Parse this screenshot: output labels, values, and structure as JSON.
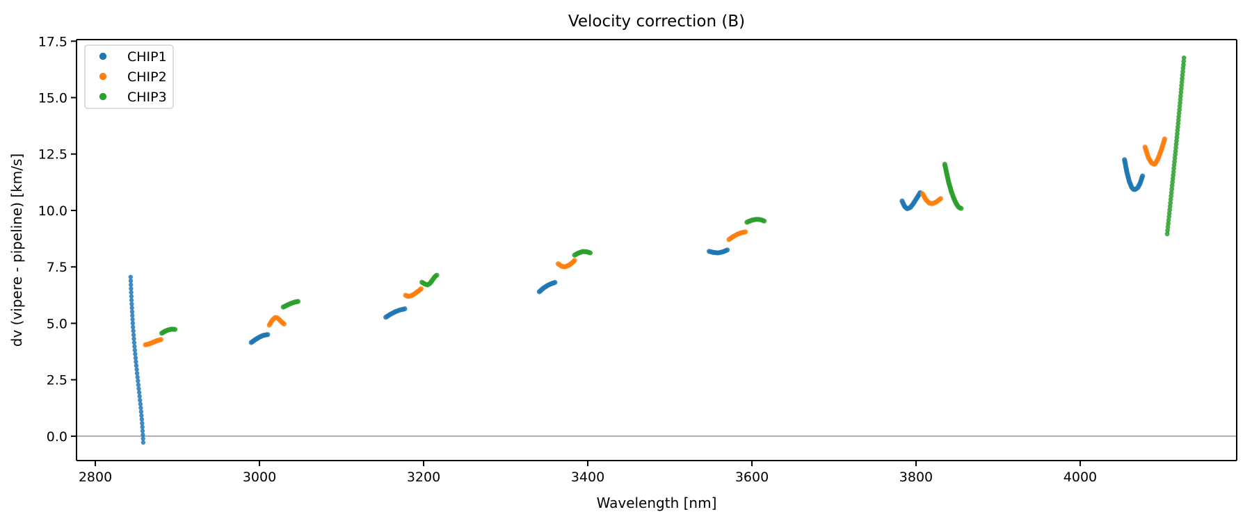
{
  "chart_data": {
    "type": "scatter",
    "title": "Velocity correction (B)",
    "xlabel": "Wavelength [nm]",
    "ylabel": "dv (vipere - pipeline) [km/s]",
    "xlim": [
      2777.1,
      4190.7
    ],
    "ylim": [
      -1.08,
      17.57
    ],
    "x_ticks": [
      2800,
      3000,
      3200,
      3400,
      3600,
      3800,
      4000
    ],
    "x_tick_labels": [
      "2800",
      "3000",
      "3200",
      "3400",
      "3600",
      "3800",
      "4000"
    ],
    "y_ticks": [
      0.0,
      2.5,
      5.0,
      7.5,
      10.0,
      12.5,
      15.0,
      17.5
    ],
    "y_tick_labels": [
      "0.0",
      "2.5",
      "5.0",
      "7.5",
      "10.0",
      "12.5",
      "15.0",
      "17.5"
    ],
    "grid": false,
    "zero_line": {
      "y": 0.0,
      "color": "#808080"
    },
    "legend": {
      "position": "upper left",
      "entries": [
        "CHIP1",
        "CHIP2",
        "CHIP3"
      ]
    },
    "series": [
      {
        "name": "CHIP1",
        "color": "#1f77b4",
        "segments": [
          {
            "dots": 44,
            "r": 3.2,
            "points": [
              [
                2843.0,
                7.05
              ],
              [
                2843.8,
                6.3
              ],
              [
                2844.8,
                5.55
              ],
              [
                2846.0,
                4.8
              ],
              [
                2847.5,
                4.1
              ],
              [
                2849.2,
                3.4
              ],
              [
                2851.2,
                2.7
              ],
              [
                2853.3,
                2.0
              ],
              [
                2855.3,
                1.3
              ],
              [
                2856.8,
                0.7
              ],
              [
                2857.8,
                0.15
              ],
              [
                2858.4,
                -0.28
              ]
            ]
          },
          {
            "points": [
              [
                2990,
                4.15
              ],
              [
                2995,
                4.28
              ],
              [
                3000,
                4.39
              ],
              [
                3005,
                4.47
              ],
              [
                3010,
                4.5
              ]
            ]
          },
          {
            "points": [
              [
                3154,
                5.27
              ],
              [
                3160,
                5.41
              ],
              [
                3166,
                5.52
              ],
              [
                3171,
                5.59
              ],
              [
                3177,
                5.64
              ]
            ]
          },
          {
            "points": [
              [
                3341,
                6.4
              ],
              [
                3346,
                6.56
              ],
              [
                3351,
                6.68
              ],
              [
                3356,
                6.76
              ],
              [
                3360,
                6.81
              ]
            ]
          },
          {
            "points": [
              [
                3548,
                8.19
              ],
              [
                3553,
                8.14
              ],
              [
                3559,
                8.12
              ],
              [
                3565,
                8.17
              ],
              [
                3570,
                8.25
              ]
            ]
          },
          {
            "points": [
              [
                3783,
                10.42
              ],
              [
                3786,
                10.18
              ],
              [
                3789,
                10.07
              ],
              [
                3793,
                10.13
              ],
              [
                3797,
                10.32
              ],
              [
                3801,
                10.55
              ],
              [
                3805,
                10.79
              ]
            ]
          },
          {
            "points": [
              [
                4054,
                12.25
              ],
              [
                4057,
                11.68
              ],
              [
                4060,
                11.27
              ],
              [
                4063,
                11.0
              ],
              [
                4066,
                10.91
              ],
              [
                4070,
                11.0
              ],
              [
                4073,
                11.2
              ],
              [
                4076,
                11.53
              ]
            ]
          }
        ]
      },
      {
        "name": "CHIP2",
        "color": "#ff7f0e",
        "segments": [
          {
            "points": [
              [
                2861,
                4.05
              ],
              [
                2865,
                4.08
              ],
              [
                2870,
                4.15
              ],
              [
                2875,
                4.23
              ],
              [
                2880,
                4.28
              ]
            ]
          },
          {
            "points": [
              [
                3012,
                4.92
              ],
              [
                3015,
                5.1
              ],
              [
                3018,
                5.23
              ],
              [
                3020,
                5.27
              ],
              [
                3023,
                5.21
              ],
              [
                3026,
                5.09
              ],
              [
                3030,
                4.97
              ]
            ]
          },
          {
            "points": [
              [
                3178,
                6.24
              ],
              [
                3181,
                6.19
              ],
              [
                3185,
                6.22
              ],
              [
                3190,
                6.33
              ],
              [
                3194,
                6.44
              ],
              [
                3197,
                6.53
              ]
            ]
          },
          {
            "points": [
              [
                3364,
                7.64
              ],
              [
                3368,
                7.53
              ],
              [
                3372,
                7.5
              ],
              [
                3377,
                7.57
              ],
              [
                3381,
                7.68
              ],
              [
                3384,
                7.79
              ]
            ]
          },
          {
            "points": [
              [
                3572,
                8.71
              ],
              [
                3577,
                8.84
              ],
              [
                3582,
                8.94
              ],
              [
                3587,
                9.01
              ],
              [
                3592,
                9.05
              ]
            ]
          },
          {
            "points": [
              [
                3808,
                10.74
              ],
              [
                3812,
                10.48
              ],
              [
                3816,
                10.33
              ],
              [
                3820,
                10.3
              ],
              [
                3825,
                10.38
              ],
              [
                3830,
                10.53
              ]
            ]
          },
          {
            "points": [
              [
                4079,
                12.81
              ],
              [
                4083,
                12.35
              ],
              [
                4087,
                12.1
              ],
              [
                4091,
                12.04
              ],
              [
                4095,
                12.3
              ],
              [
                4099,
                12.7
              ],
              [
                4103,
                13.17
              ]
            ]
          }
        ]
      },
      {
        "name": "CHIP3",
        "color": "#2ca02c",
        "segments": [
          {
            "points": [
              [
                2881,
                4.56
              ],
              [
                2885,
                4.65
              ],
              [
                2889,
                4.71
              ],
              [
                2893,
                4.74
              ],
              [
                2897,
                4.73
              ]
            ]
          },
          {
            "points": [
              [
                3029,
                5.72
              ],
              [
                3034,
                5.81
              ],
              [
                3039,
                5.89
              ],
              [
                3043,
                5.94
              ],
              [
                3047,
                5.97
              ]
            ]
          },
          {
            "points": [
              [
                3198,
                6.82
              ],
              [
                3202,
                6.73
              ],
              [
                3205,
                6.7
              ],
              [
                3208,
                6.78
              ],
              [
                3211,
                6.93
              ],
              [
                3214,
                7.08
              ],
              [
                3216,
                7.13
              ]
            ]
          },
          {
            "points": [
              [
                3384,
                8.02
              ],
              [
                3389,
                8.12
              ],
              [
                3394,
                8.18
              ],
              [
                3399,
                8.17
              ],
              [
                3403,
                8.12
              ]
            ]
          },
          {
            "points": [
              [
                3594,
                9.48
              ],
              [
                3600,
                9.57
              ],
              [
                3606,
                9.61
              ],
              [
                3611,
                9.59
              ],
              [
                3615,
                9.53
              ]
            ]
          },
          {
            "points": [
              [
                3835,
                12.05
              ],
              [
                3837.5,
                11.62
              ],
              [
                3840,
                11.22
              ],
              [
                3843,
                10.84
              ],
              [
                3846,
                10.54
              ],
              [
                3849,
                10.3
              ],
              [
                3852,
                10.14
              ],
              [
                3855,
                10.09
              ]
            ]
          },
          {
            "dots": 52,
            "r": 3.4,
            "points": [
              [
                4106,
                8.96
              ],
              [
                4110,
                10.35
              ],
              [
                4113,
                11.45
              ],
              [
                4116,
                12.55
              ],
              [
                4119,
                13.7
              ],
              [
                4122,
                14.9
              ],
              [
                4124.5,
                15.95
              ],
              [
                4126.5,
                16.76
              ]
            ]
          }
        ]
      }
    ]
  }
}
